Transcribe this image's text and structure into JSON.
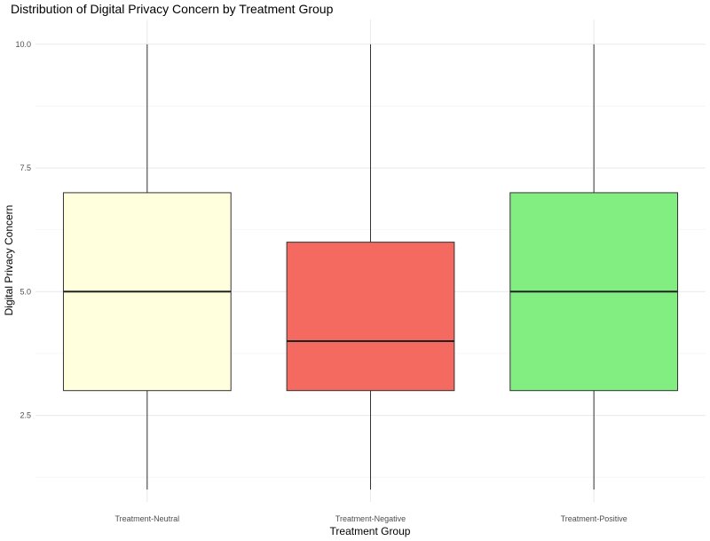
{
  "chart_data": {
    "type": "boxplot",
    "title": "Distribution of Digital Privacy Concern by Treatment Group",
    "xlabel": "Treatment Group",
    "ylabel": "Digital Privacy Concern",
    "categories": [
      "Treatment-Neutral",
      "Treatment-Negative",
      "Treatment-Positive"
    ],
    "y_ticks": [
      "2.5",
      "5.0",
      "7.5",
      "10.0"
    ],
    "ylim": [
      0.75,
      10.5
    ],
    "grid": true,
    "legend": "none",
    "boxes": [
      {
        "category": "Treatment-Neutral",
        "min": 1,
        "q1": 3,
        "median": 5,
        "q3": 7,
        "max": 10,
        "color": "#FFFFDD"
      },
      {
        "category": "Treatment-Negative",
        "min": 1,
        "q1": 3,
        "median": 4,
        "q3": 6,
        "max": 10,
        "color": "#F46A60"
      },
      {
        "category": "Treatment-Positive",
        "min": 1,
        "q1": 3,
        "median": 5,
        "q3": 7,
        "max": 10,
        "color": "#82EE81"
      }
    ]
  }
}
